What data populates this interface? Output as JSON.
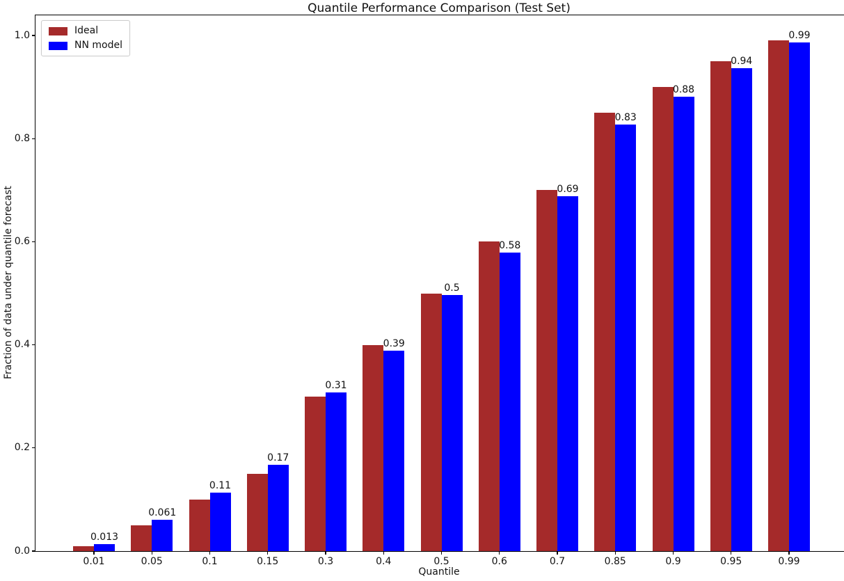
{
  "chart_data": {
    "type": "bar",
    "title": "Quantile Performance Comparison (Test Set)",
    "xlabel": "Quantile",
    "ylabel": "Fraction of data under quantile forecast",
    "categories": [
      "0.01",
      "0.05",
      "0.1",
      "0.15",
      "0.3",
      "0.4",
      "0.5",
      "0.6",
      "0.7",
      "0.85",
      "0.9",
      "0.95",
      "0.99"
    ],
    "series": [
      {
        "name": "Ideal",
        "color": "#A52A2A",
        "values": [
          0.01,
          0.05,
          0.1,
          0.15,
          0.3,
          0.4,
          0.5,
          0.6,
          0.7,
          0.85,
          0.9,
          0.95,
          0.99
        ]
      },
      {
        "name": "NN model",
        "color": "#0000FF",
        "values": [
          0.013,
          0.061,
          0.113,
          0.167,
          0.308,
          0.389,
          0.497,
          0.579,
          0.688,
          0.827,
          0.881,
          0.936,
          0.987
        ],
        "bar_labels": [
          "0.013",
          "0.061",
          "0.11",
          "0.17",
          "0.31",
          "0.39",
          "0.5",
          "0.58",
          "0.69",
          "0.83",
          "0.88",
          "0.94",
          "0.99"
        ]
      }
    ],
    "ylim": [
      0,
      1.039
    ],
    "yticks": [
      "0.0",
      "0.2",
      "0.4",
      "0.6",
      "0.8",
      "1.0"
    ],
    "grid": false,
    "legend_position": "upper left",
    "axis_color": "#000000",
    "background_color": "#FFFFFF"
  }
}
